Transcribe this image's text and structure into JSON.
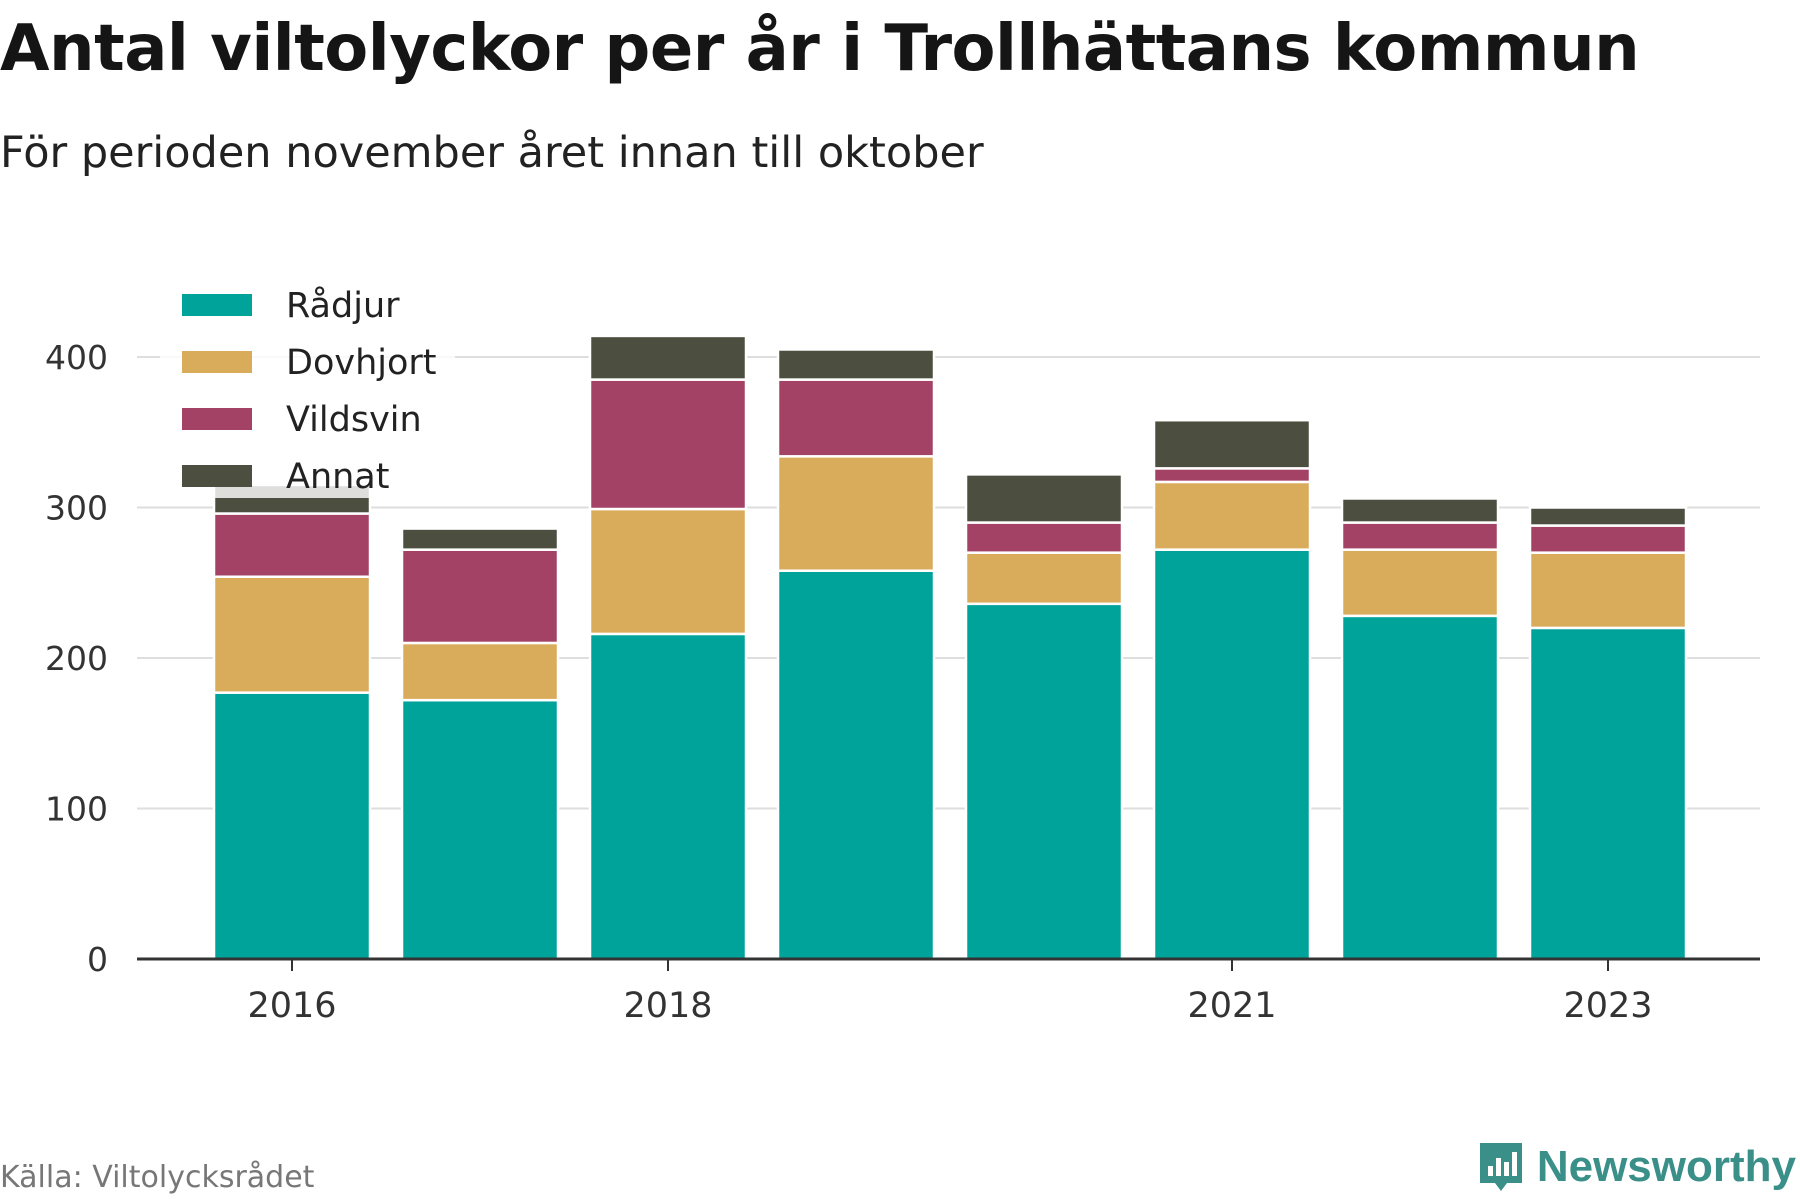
{
  "header": {
    "title": "Antal viltolyckor per år i Trollhättans kommun",
    "subtitle": "För perioden november året innan till oktober"
  },
  "footer": {
    "source": "Källa: Viltolycksrådet",
    "brand": "Newsworthy",
    "brand_color": "#3a8f88"
  },
  "chart_data": {
    "type": "bar",
    "stacked": true,
    "categories": [
      "2016",
      "2017",
      "2018",
      "2019",
      "2020",
      "2021",
      "2022",
      "2023"
    ],
    "x_tick_labels": [
      "2016",
      "",
      "2018",
      "",
      "",
      "2021",
      "",
      "2023"
    ],
    "series": [
      {
        "name": "Rådjur",
        "color": "#00a39a",
        "values": [
          177,
          172,
          216,
          258,
          236,
          272,
          228,
          220
        ]
      },
      {
        "name": "Dovhjort",
        "color": "#d9ac5b",
        "values": [
          77,
          38,
          83,
          76,
          34,
          45,
          44,
          50
        ]
      },
      {
        "name": "Vildsvin",
        "color": "#a44266",
        "values": [
          42,
          62,
          86,
          51,
          20,
          9,
          18,
          18
        ]
      },
      {
        "name": "Annat",
        "color": "#4c4f40",
        "values": [
          19,
          14,
          29,
          20,
          32,
          32,
          16,
          12
        ]
      }
    ],
    "y_ticks": [
      0,
      100,
      200,
      300,
      400
    ],
    "ylim": [
      0,
      420
    ],
    "grid": true,
    "legend_position": "top-left"
  }
}
